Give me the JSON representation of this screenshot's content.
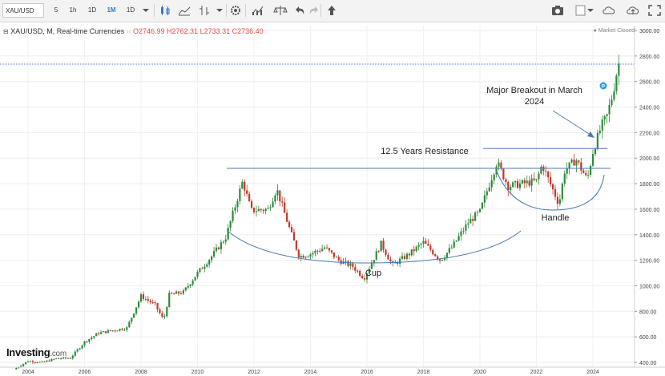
{
  "toolbar": {
    "symbol": "XAU/USD",
    "intervals": [
      "5",
      "1h",
      "1D",
      "1M",
      "1D"
    ],
    "active_interval": "1M"
  },
  "legend": {
    "title": "XAU/USD, M, Real-time Currencies",
    "open": "O2746.99",
    "high": "H2762.31",
    "low": "L2733.31",
    "close": "C2736.40"
  },
  "status": "Market Closed",
  "logo": {
    "name": "Investing",
    "suffix": ".com"
  },
  "annotations": {
    "resistance": "12.5 Years Resistance",
    "breakout_line1": "Major Breakout in March",
    "breakout_line2": "2024",
    "cup": "Cup",
    "handle": "Handle"
  },
  "colors": {
    "up": "#2e8b3c",
    "down": "#c0392b",
    "annotation": "#4a7ab5",
    "current_price": "#1e53e5"
  },
  "chart_data": {
    "type": "candlestick",
    "x_label_years": [
      2004,
      2006,
      2008,
      2010,
      2012,
      2014,
      2016,
      2018,
      2020,
      2022,
      2024
    ],
    "y_ticks": [
      400,
      600,
      800,
      1000,
      1200,
      1400,
      1600,
      1800,
      2000,
      2200,
      2400,
      2600,
      2800,
      3000
    ],
    "ylim": [
      280,
      3050
    ],
    "current_price": "2736.40",
    "resistance_level": 1920,
    "handle_top_level": 2075,
    "price_path": [
      [
        2003.5,
        345
      ],
      [
        2004.0,
        410
      ],
      [
        2004.5,
        400
      ],
      [
        2005.0,
        430
      ],
      [
        2005.5,
        435
      ],
      [
        2006.0,
        560
      ],
      [
        2006.5,
        630
      ],
      [
        2007.0,
        650
      ],
      [
        2007.5,
        670
      ],
      [
        2008.0,
        920
      ],
      [
        2008.5,
        850
      ],
      [
        2008.8,
        730
      ],
      [
        2009.0,
        930
      ],
      [
        2009.5,
        950
      ],
      [
        2010.0,
        1100
      ],
      [
        2010.5,
        1230
      ],
      [
        2011.0,
        1380
      ],
      [
        2011.6,
        1820
      ],
      [
        2011.9,
        1590
      ],
      [
        2012.5,
        1600
      ],
      [
        2012.8,
        1760
      ],
      [
        2013.3,
        1420
      ],
      [
        2013.6,
        1230
      ],
      [
        2014.0,
        1250
      ],
      [
        2014.5,
        1300
      ],
      [
        2015.0,
        1200
      ],
      [
        2015.5,
        1150
      ],
      [
        2015.9,
        1060
      ],
      [
        2016.5,
        1330
      ],
      [
        2016.9,
        1160
      ],
      [
        2017.5,
        1250
      ],
      [
        2018.0,
        1340
      ],
      [
        2018.6,
        1200
      ],
      [
        2019.0,
        1300
      ],
      [
        2019.6,
        1500
      ],
      [
        2020.0,
        1580
      ],
      [
        2020.6,
        1970
      ],
      [
        2021.0,
        1780
      ],
      [
        2021.5,
        1800
      ],
      [
        2022.0,
        1820
      ],
      [
        2022.2,
        1950
      ],
      [
        2022.8,
        1640
      ],
      [
        2023.0,
        1900
      ],
      [
        2023.4,
        1990
      ],
      [
        2023.8,
        1830
      ],
      [
        2024.0,
        2050
      ],
      [
        2024.3,
        2250
      ],
      [
        2024.5,
        2330
      ],
      [
        2024.7,
        2500
      ],
      [
        2024.9,
        2740
      ]
    ]
  }
}
